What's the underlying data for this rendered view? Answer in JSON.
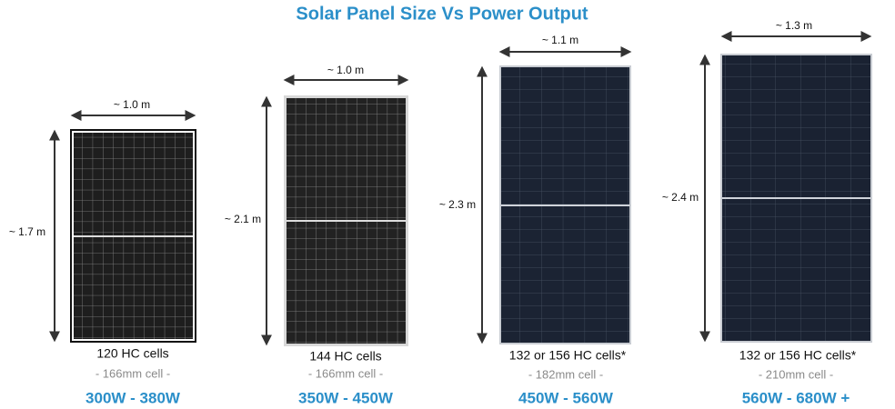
{
  "header": {
    "title": "Solar Panel Size Vs Power Output"
  },
  "panels": [
    {
      "width": "~ 1.0 m",
      "height": "~ 1.7 m",
      "cells": "120 HC cells",
      "cell_size": "- 166mm cell -",
      "power": "300W - 380W"
    },
    {
      "width": "~ 1.0 m",
      "height": "~ 2.1 m",
      "cells": "144 HC cells",
      "cell_size": "- 166mm cell -",
      "power": "350W - 450W"
    },
    {
      "width": "~ 1.1 m",
      "height": "~ 2.3 m",
      "cells": "132 or 156 HC cells*",
      "cell_size": "- 182mm cell -",
      "power": "450W - 560W"
    },
    {
      "width": "~ 1.3 m",
      "height": "~ 2.4 m",
      "cells": "132 or 156 HC cells*",
      "cell_size": "- 210mm cell -",
      "power": "560W - 680W +"
    }
  ]
}
